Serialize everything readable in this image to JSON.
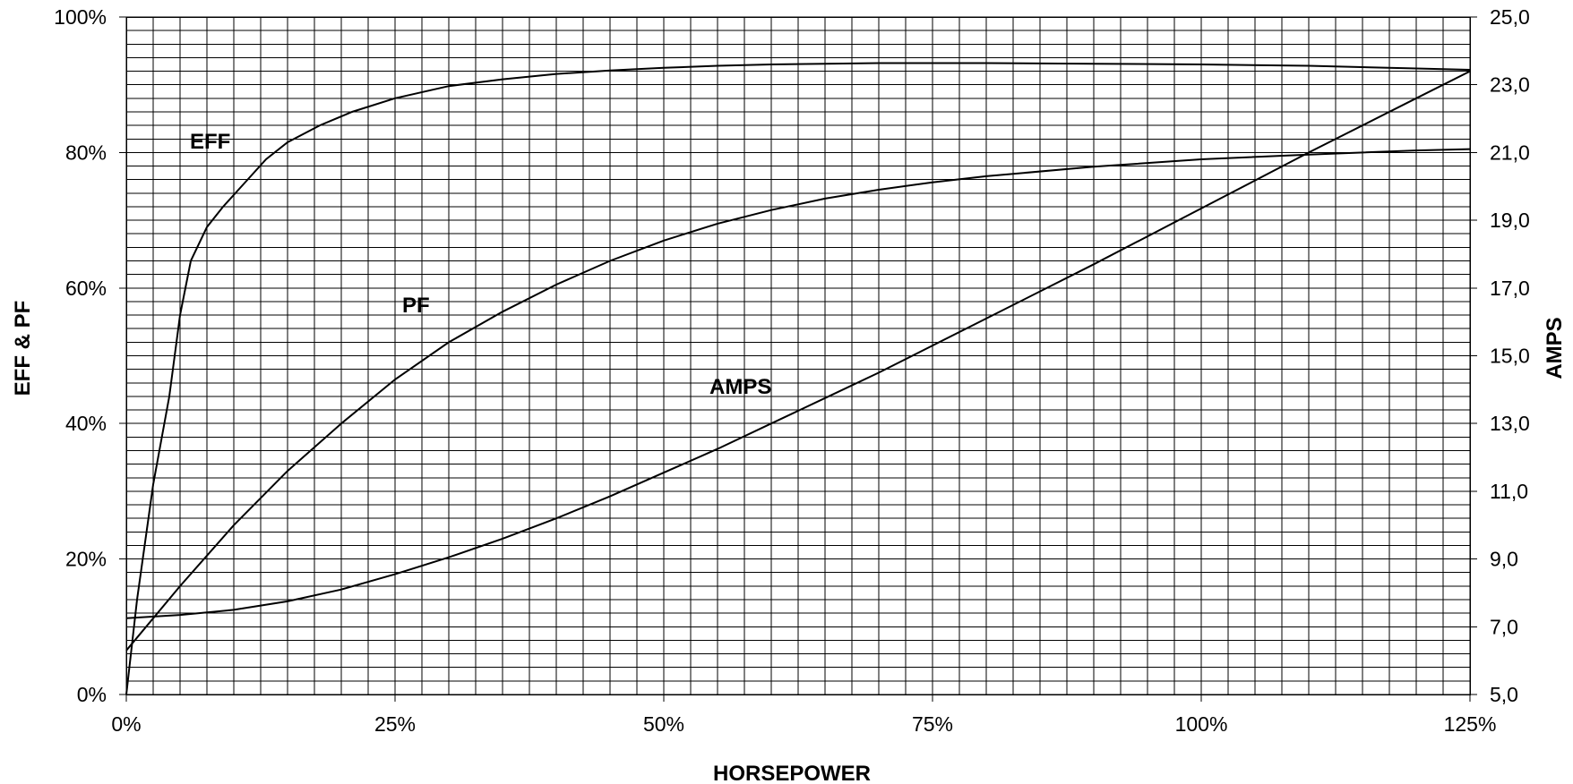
{
  "chart_data": {
    "type": "line",
    "title": "",
    "xlabel": "HORSEPOWER",
    "ylabel": "EFF & PF",
    "y2label": "AMPS",
    "xlim": [
      0,
      125
    ],
    "ylim": [
      0,
      100
    ],
    "y2lim": [
      5,
      25
    ],
    "x_ticks": [
      "0%",
      "25%",
      "50%",
      "75%",
      "100%",
      "125%"
    ],
    "y_ticks": [
      "0%",
      "20%",
      "40%",
      "60%",
      "80%",
      "100%"
    ],
    "y2_ticks": [
      "5,0",
      "7,0",
      "9,0",
      "11,0",
      "13,0",
      "15,0",
      "17,0",
      "19,0",
      "21,0",
      "23,0",
      "25,0"
    ],
    "grid": true,
    "series": [
      {
        "name": "EFF",
        "axis": "left",
        "x": [
          0,
          1,
          2.5,
          4,
          5,
          6,
          7.5,
          9,
          11,
          13,
          15,
          18,
          21,
          25,
          30,
          35,
          40,
          45,
          50,
          55,
          60,
          65,
          70,
          75,
          80,
          90,
          100,
          110,
          120,
          125
        ],
        "y": [
          0,
          14,
          31,
          44,
          56,
          64,
          69,
          72,
          75.5,
          79,
          81.5,
          84,
          86,
          88,
          89.8,
          90.8,
          91.6,
          92.1,
          92.5,
          92.8,
          93,
          93.1,
          93.2,
          93.2,
          93.2,
          93.1,
          93,
          92.8,
          92.4,
          92.2
        ]
      },
      {
        "name": "PF",
        "axis": "left",
        "x": [
          0,
          5,
          10,
          15,
          20,
          25,
          30,
          35,
          40,
          45,
          50,
          55,
          60,
          65,
          70,
          75,
          80,
          90,
          100,
          110,
          120,
          125
        ],
        "y": [
          6.5,
          16,
          25,
          33,
          40,
          46.5,
          52,
          56.5,
          60.5,
          64,
          67,
          69.5,
          71.5,
          73.2,
          74.5,
          75.6,
          76.5,
          77.9,
          79,
          79.7,
          80.3,
          80.5
        ]
      },
      {
        "name": "AMPS",
        "axis": "right",
        "x": [
          0,
          5,
          10,
          15,
          20,
          25,
          30,
          35,
          40,
          45,
          50,
          55,
          60,
          65,
          70,
          75,
          80,
          90,
          100,
          110,
          120,
          125
        ],
        "y": [
          7.25,
          7.35,
          7.5,
          7.75,
          8.1,
          8.55,
          9.05,
          9.6,
          10.2,
          10.85,
          11.55,
          12.25,
          13,
          13.75,
          14.5,
          15.3,
          16.1,
          17.7,
          19.35,
          21,
          22.6,
          23.4
        ]
      }
    ],
    "annotations": [
      "EFF",
      "PF",
      "AMPS"
    ]
  }
}
